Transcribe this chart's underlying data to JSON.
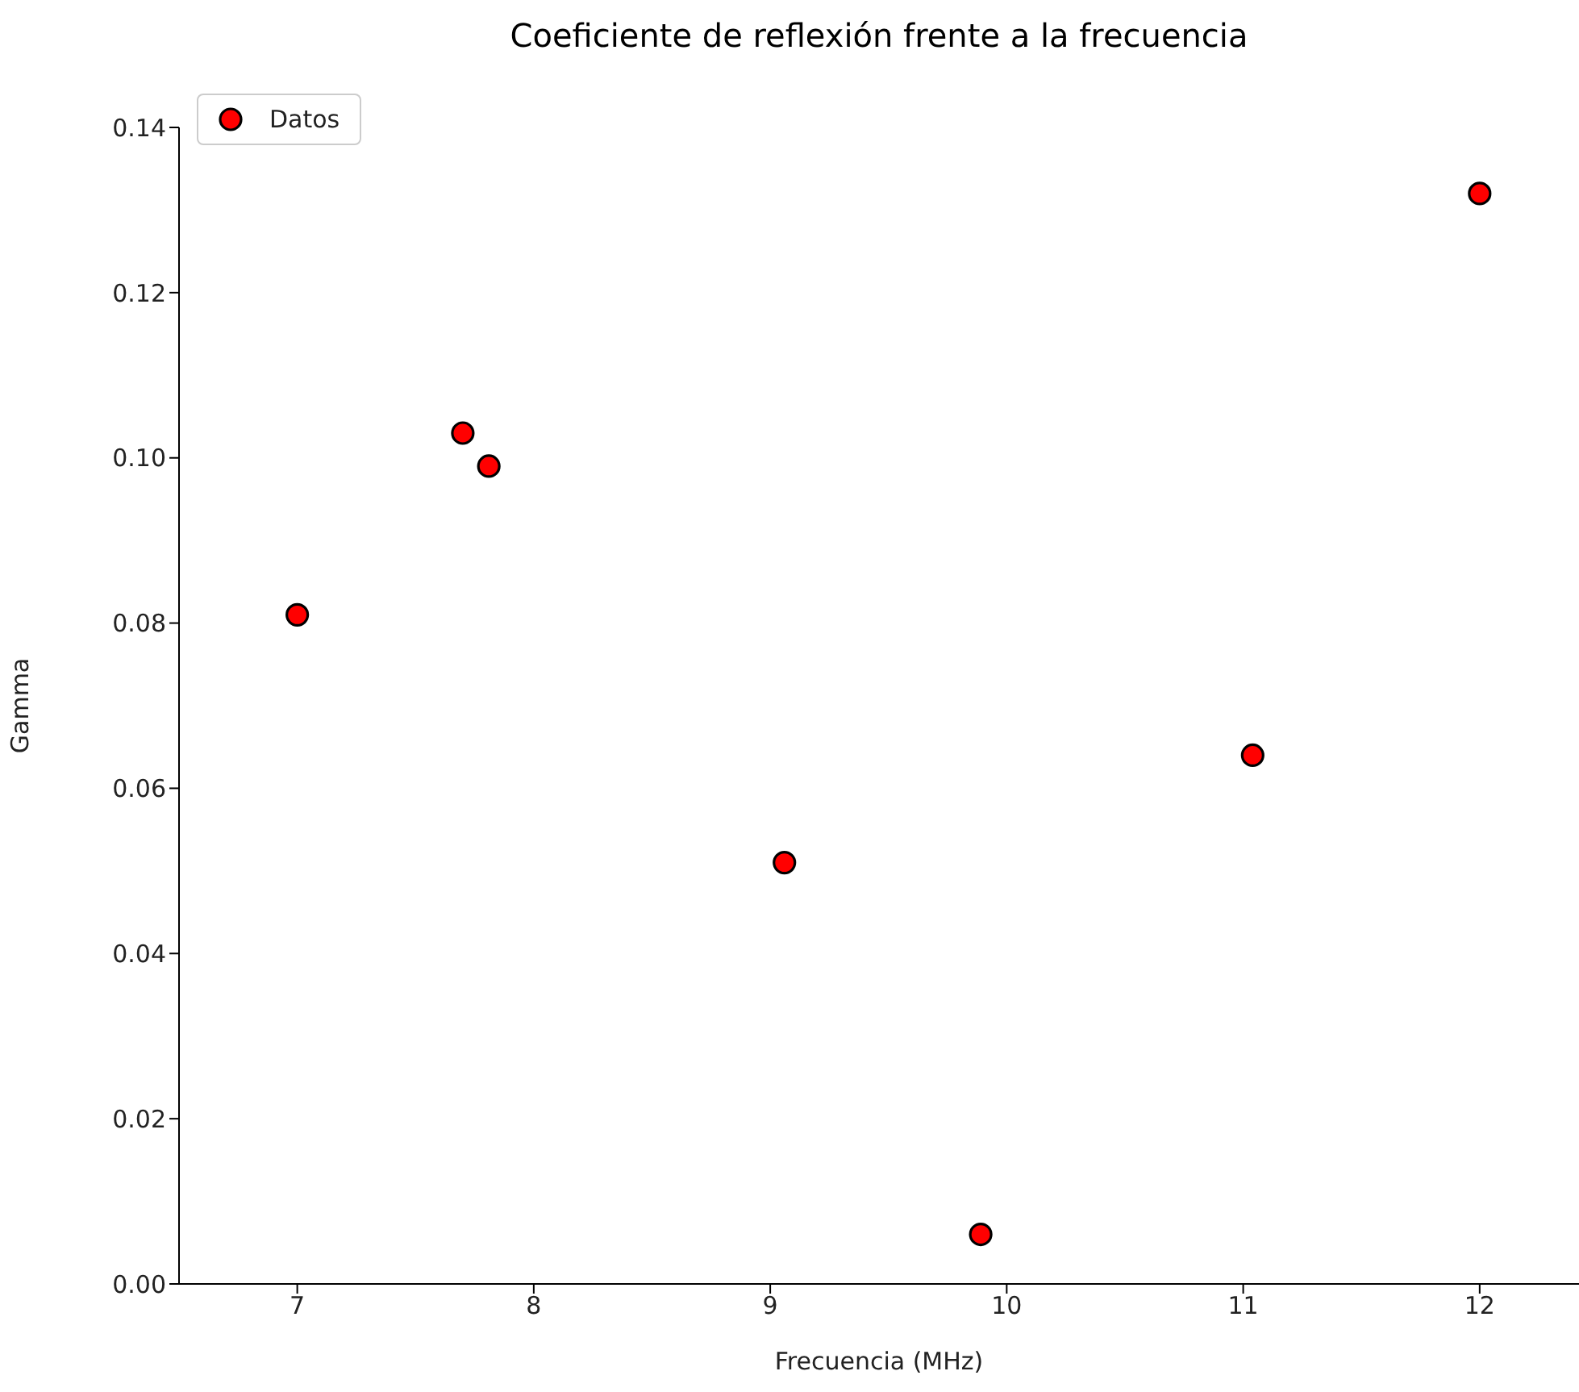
{
  "chart_data": {
    "type": "scatter",
    "title": "Coeficiente de reflexión frente a la frecuencia",
    "xlabel": "Frecuencia (MHz)",
    "ylabel": "Gamma",
    "x": [
      7.0,
      7.7,
      7.81,
      9.06,
      9.89,
      11.04,
      12.0
    ],
    "series": [
      {
        "name": "Datos",
        "color": "#ff0000",
        "values": [
          0.081,
          0.103,
          0.099,
          0.051,
          0.006,
          0.064,
          0.132
        ]
      }
    ],
    "xlim": [
      6.5,
      12.42
    ],
    "xticks": [
      7,
      8,
      9,
      10,
      11,
      12
    ],
    "ylim": [
      0,
      0.14
    ],
    "yticks": [
      {
        "value": 0,
        "label": "0.00"
      },
      {
        "value": 0.02,
        "label": "0.02"
      },
      {
        "value": 0.04,
        "label": "0.04"
      },
      {
        "value": 0.06,
        "label": "0.06"
      },
      {
        "value": 0.08,
        "label": "0.08"
      },
      {
        "value": 0.1,
        "label": "0.10"
      },
      {
        "value": 0.12,
        "label": "0.12"
      },
      {
        "value": 0.14,
        "label": "0.14"
      }
    ],
    "marker": "circle",
    "legend": "top left",
    "grid": false
  }
}
